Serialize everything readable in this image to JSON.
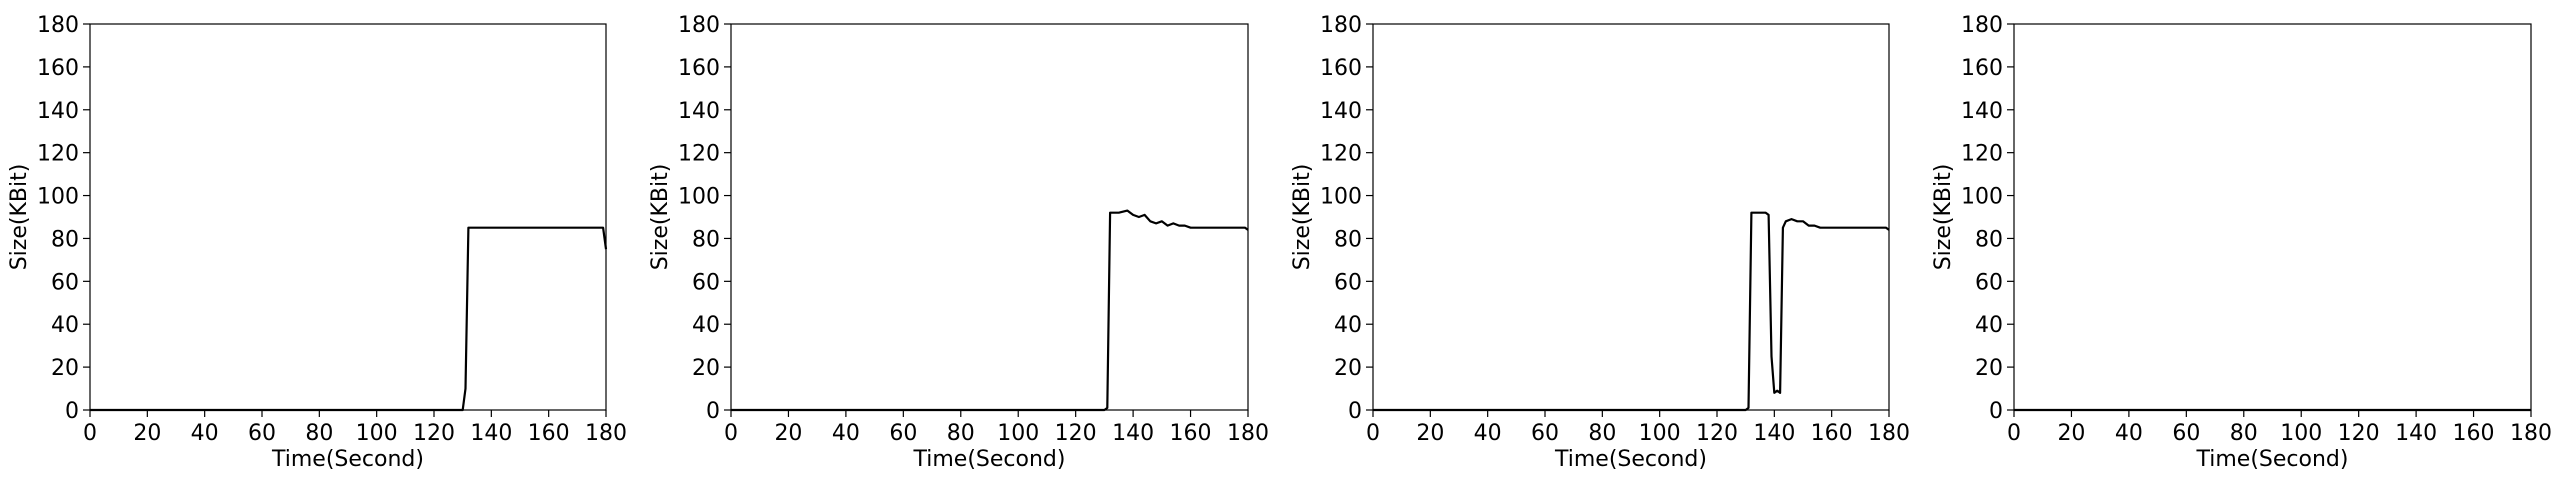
{
  "chart_data": [
    {
      "type": "line",
      "xlabel": "Time(Second)",
      "ylabel": "Size(KBit)",
      "xlim": [
        0,
        180
      ],
      "ylim": [
        0,
        180
      ],
      "xticks": [
        0,
        20,
        40,
        60,
        80,
        100,
        120,
        140,
        160,
        180
      ],
      "yticks": [
        0,
        20,
        40,
        60,
        80,
        100,
        120,
        140,
        160,
        180
      ],
      "grid": false,
      "series": [
        {
          "color": "#000000",
          "x": [
            0,
            130,
            131,
            132,
            140,
            150,
            160,
            170,
            179,
            180
          ],
          "y": [
            0,
            0,
            10,
            85,
            85,
            85,
            85,
            85,
            85,
            75
          ]
        }
      ]
    },
    {
      "type": "line",
      "xlabel": "Time(Second)",
      "ylabel": "Size(KBit)",
      "xlim": [
        0,
        180
      ],
      "ylim": [
        0,
        180
      ],
      "xticks": [
        0,
        20,
        40,
        60,
        80,
        100,
        120,
        140,
        160,
        180
      ],
      "yticks": [
        0,
        20,
        40,
        60,
        80,
        100,
        120,
        140,
        160,
        180
      ],
      "grid": false,
      "series": [
        {
          "color": "#000000",
          "x": [
            0,
            130,
            131,
            132,
            135,
            138,
            140,
            142,
            144,
            146,
            148,
            150,
            152,
            154,
            156,
            158,
            160,
            165,
            170,
            175,
            179,
            180
          ],
          "y": [
            0,
            0,
            1,
            92,
            92,
            93,
            91,
            90,
            91,
            88,
            87,
            88,
            86,
            87,
            86,
            86,
            85,
            85,
            85,
            85,
            85,
            84
          ]
        }
      ]
    },
    {
      "type": "line",
      "xlabel": "Time(Second)",
      "ylabel": "Size(KBit)",
      "xlim": [
        0,
        180
      ],
      "ylim": [
        0,
        180
      ],
      "xticks": [
        0,
        20,
        40,
        60,
        80,
        100,
        120,
        140,
        160,
        180
      ],
      "yticks": [
        0,
        20,
        40,
        60,
        80,
        100,
        120,
        140,
        160,
        180
      ],
      "grid": false,
      "series": [
        {
          "color": "#000000",
          "x": [
            0,
            130,
            131,
            132,
            135,
            137,
            138,
            139,
            140,
            141,
            142,
            143,
            144,
            146,
            148,
            150,
            152,
            154,
            156,
            160,
            165,
            170,
            175,
            179,
            180
          ],
          "y": [
            0,
            0,
            1,
            92,
            92,
            92,
            91,
            25,
            8,
            9,
            8,
            85,
            88,
            89,
            88,
            88,
            86,
            86,
            85,
            85,
            85,
            85,
            85,
            85,
            84
          ]
        }
      ]
    },
    {
      "type": "line",
      "xlabel": "Time(Second)",
      "ylabel": "Size(KBit)",
      "xlim": [
        0,
        180
      ],
      "ylim": [
        0,
        180
      ],
      "xticks": [
        0,
        20,
        40,
        60,
        80,
        100,
        120,
        140,
        160,
        180
      ],
      "yticks": [
        0,
        20,
        40,
        60,
        80,
        100,
        120,
        140,
        160,
        180
      ],
      "grid": false,
      "series": [
        {
          "color": "#000000",
          "x": [
            0,
            180
          ],
          "y": [
            0,
            0
          ]
        }
      ]
    }
  ]
}
